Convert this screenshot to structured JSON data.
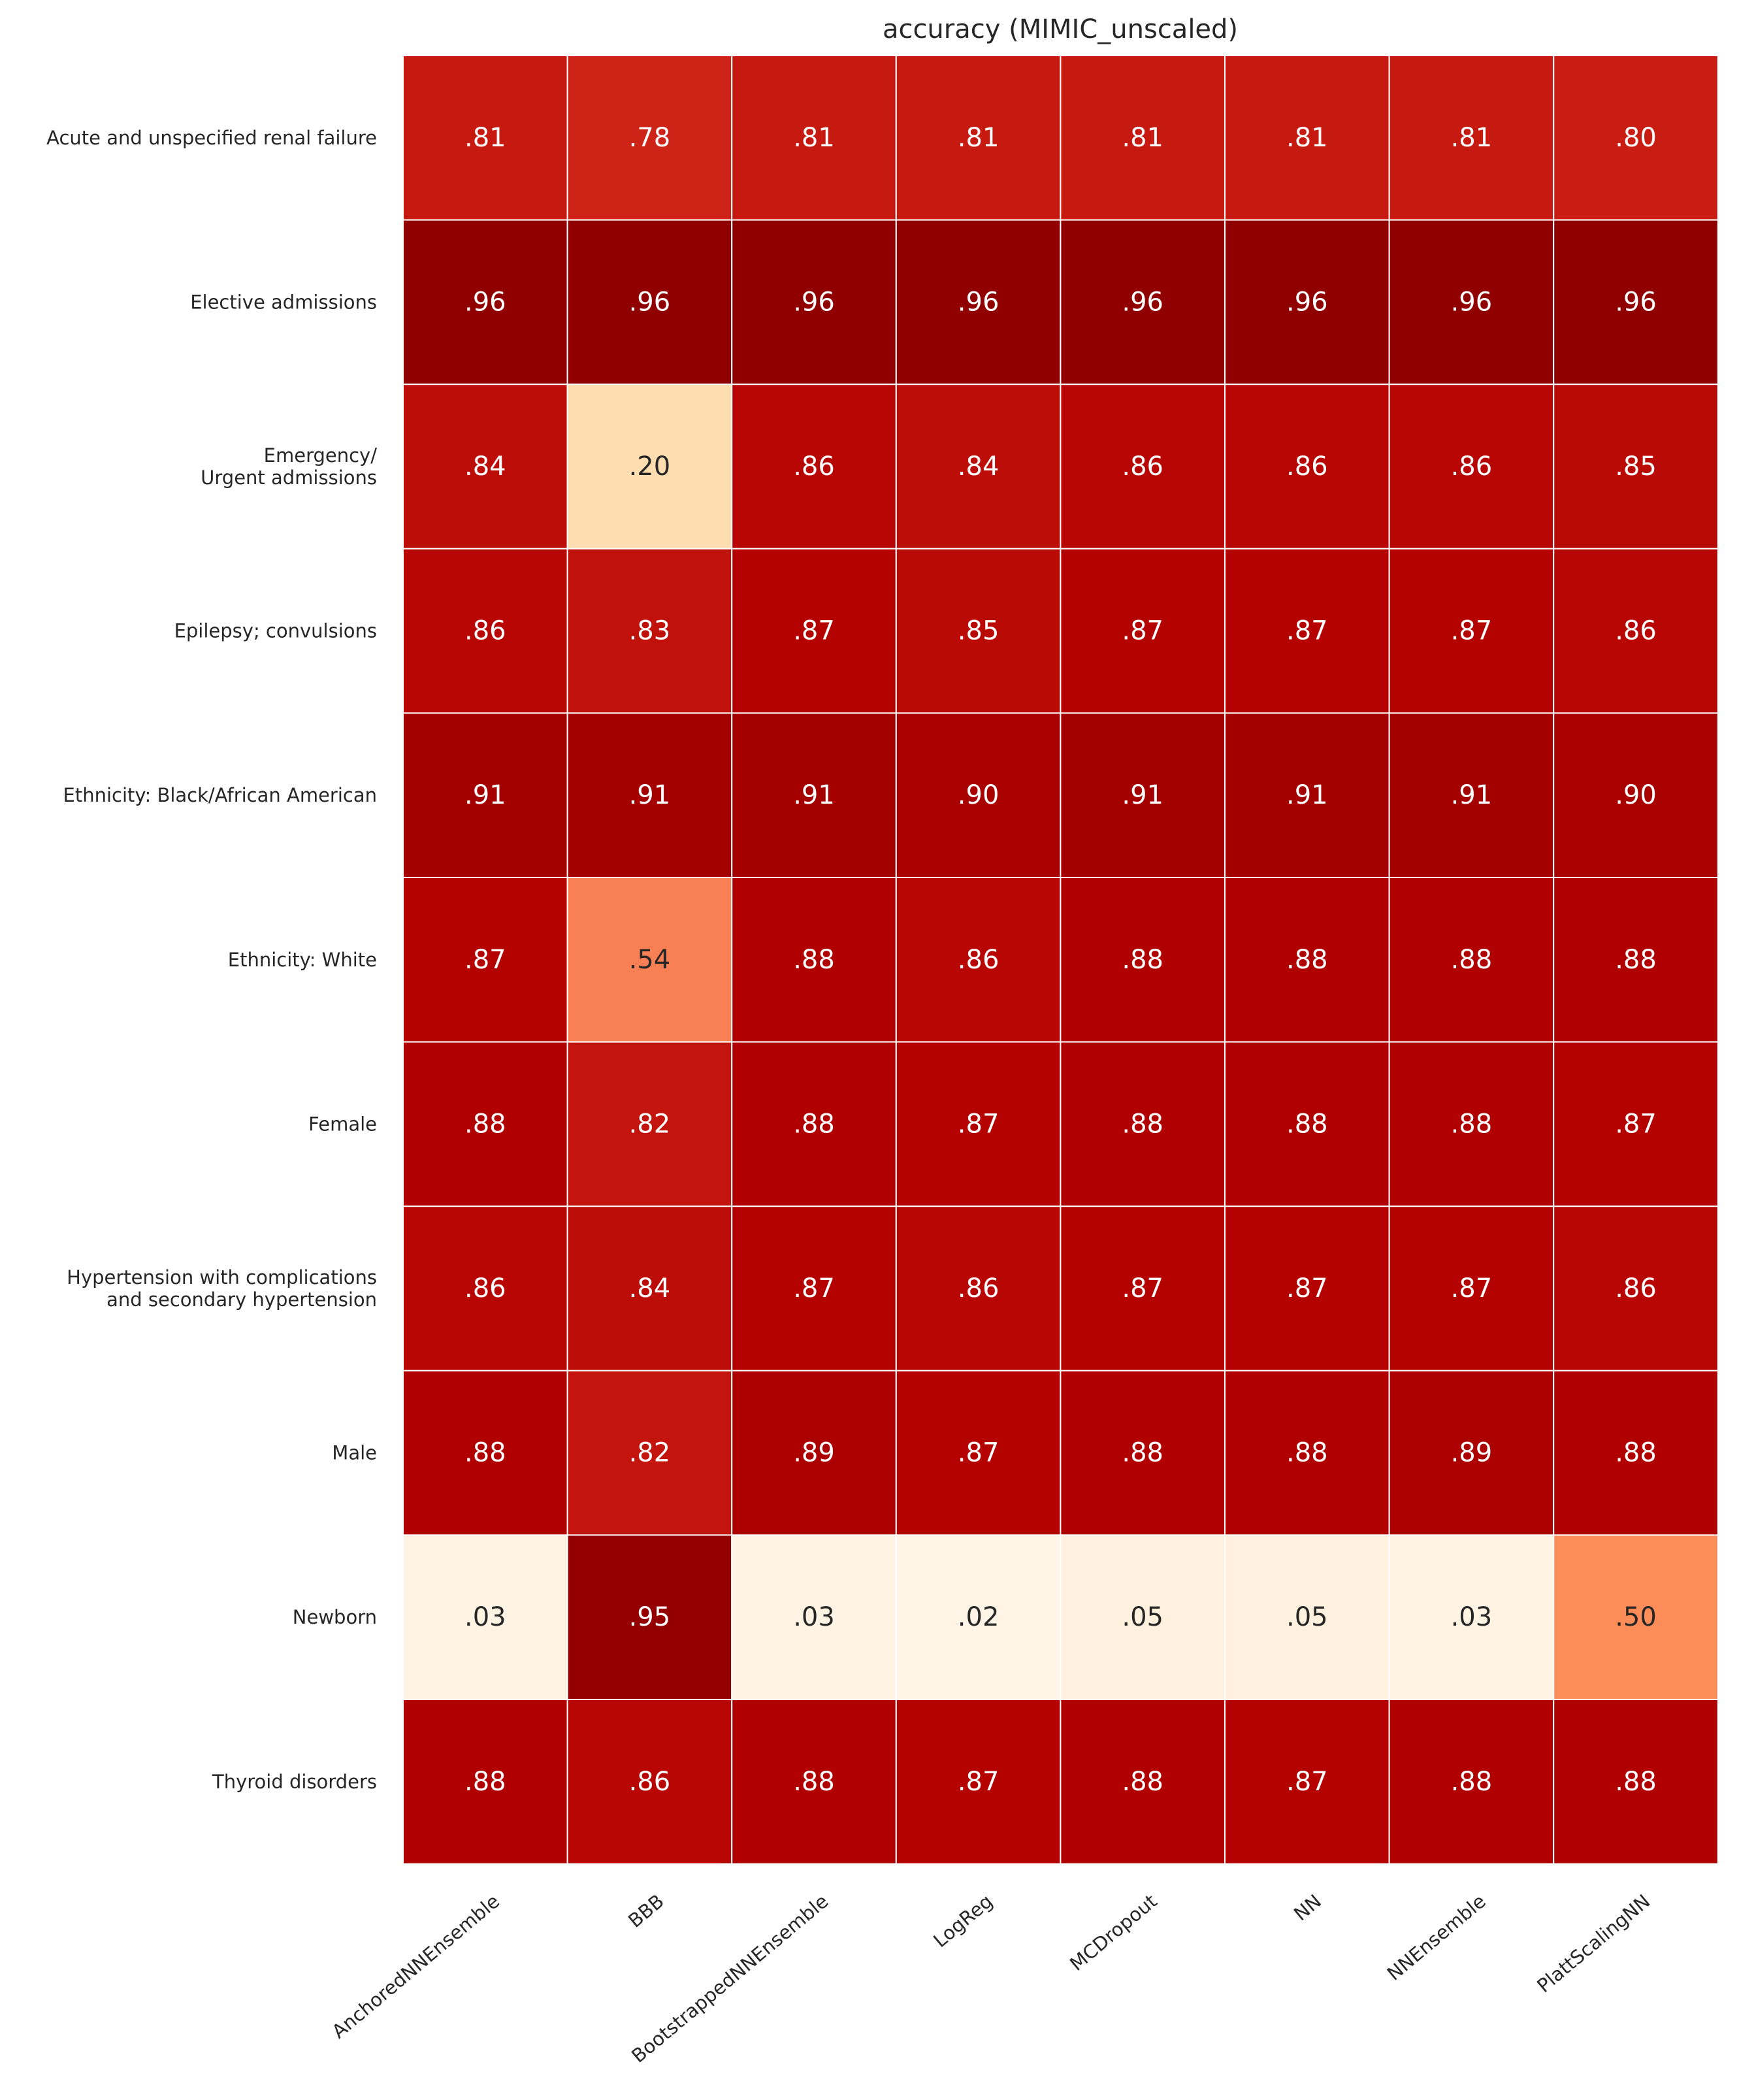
{
  "chart_data": {
    "type": "heatmap",
    "title": "accuracy (MIMIC_unscaled)",
    "colormap": "OrRd",
    "value_range": [
      0,
      1
    ],
    "grid": false,
    "legend": "none",
    "rows": [
      [
        "Acute and unspecified renal failure"
      ],
      [
        "Elective admissions"
      ],
      [
        "Emergency/",
        "Urgent admissions"
      ],
      [
        "Epilepsy; convulsions"
      ],
      [
        "Ethnicity: Black/African American"
      ],
      [
        "Ethnicity: White"
      ],
      [
        "Female"
      ],
      [
        "Hypertension with complications",
        "and secondary hypertension"
      ],
      [
        "Male"
      ],
      [
        "Newborn"
      ],
      [
        "Thyroid disorders"
      ]
    ],
    "columns": [
      "AnchoredNNEnsemble",
      "BBB",
      "BootstrappedNNEnsemble",
      "LogReg",
      "MCDropout",
      "NN",
      "NNEnsemble",
      "PlattScalingNN"
    ],
    "values": [
      [
        0.81,
        0.78,
        0.81,
        0.81,
        0.81,
        0.81,
        0.81,
        0.8
      ],
      [
        0.96,
        0.96,
        0.96,
        0.96,
        0.96,
        0.96,
        0.96,
        0.96
      ],
      [
        0.84,
        0.2,
        0.86,
        0.84,
        0.86,
        0.86,
        0.86,
        0.85
      ],
      [
        0.86,
        0.83,
        0.87,
        0.85,
        0.87,
        0.87,
        0.87,
        0.86
      ],
      [
        0.91,
        0.91,
        0.91,
        0.9,
        0.91,
        0.91,
        0.91,
        0.9
      ],
      [
        0.87,
        0.54,
        0.88,
        0.86,
        0.88,
        0.88,
        0.88,
        0.88
      ],
      [
        0.88,
        0.82,
        0.88,
        0.87,
        0.88,
        0.88,
        0.88,
        0.87
      ],
      [
        0.86,
        0.84,
        0.87,
        0.86,
        0.87,
        0.87,
        0.87,
        0.86
      ],
      [
        0.88,
        0.82,
        0.89,
        0.87,
        0.88,
        0.88,
        0.89,
        0.88
      ],
      [
        0.03,
        0.95,
        0.03,
        0.02,
        0.05,
        0.05,
        0.03,
        0.5
      ],
      [
        0.88,
        0.86,
        0.88,
        0.87,
        0.88,
        0.87,
        0.88,
        0.88
      ]
    ],
    "cell_labels": [
      [
        ".81",
        ".78",
        ".81",
        ".81",
        ".81",
        ".81",
        ".81",
        ".80"
      ],
      [
        ".96",
        ".96",
        ".96",
        ".96",
        ".96",
        ".96",
        ".96",
        ".96"
      ],
      [
        ".84",
        ".20",
        ".86",
        ".84",
        ".86",
        ".86",
        ".86",
        ".85"
      ],
      [
        ".86",
        ".83",
        ".87",
        ".85",
        ".87",
        ".87",
        ".87",
        ".86"
      ],
      [
        ".91",
        ".91",
        ".91",
        ".90",
        ".91",
        ".91",
        ".91",
        ".90"
      ],
      [
        ".87",
        ".54",
        ".88",
        ".86",
        ".88",
        ".88",
        ".88",
        ".88"
      ],
      [
        ".88",
        ".82",
        ".88",
        ".87",
        ".88",
        ".88",
        ".88",
        ".87"
      ],
      [
        ".86",
        ".84",
        ".87",
        ".86",
        ".87",
        ".87",
        ".87",
        ".86"
      ],
      [
        ".88",
        ".82",
        ".89",
        ".87",
        ".88",
        ".88",
        ".89",
        ".88"
      ],
      [
        ".03",
        ".95",
        ".03",
        ".02",
        ".05",
        ".05",
        ".03",
        ".50"
      ],
      [
        ".88",
        ".86",
        ".88",
        ".87",
        ".88",
        ".87",
        ".88",
        ".88"
      ]
    ]
  }
}
